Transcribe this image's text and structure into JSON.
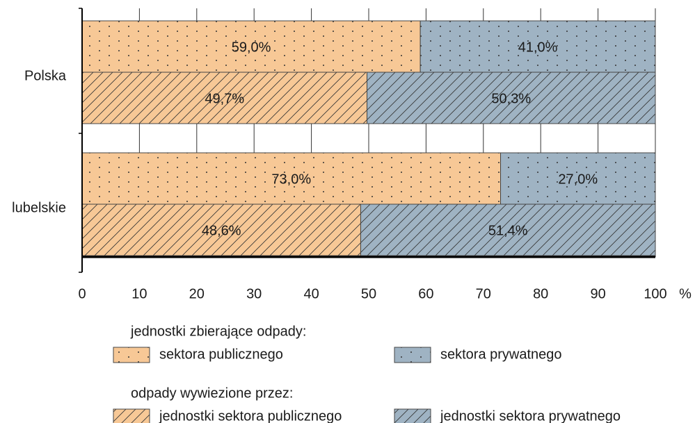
{
  "chart_data": {
    "type": "bar",
    "orientation": "horizontal",
    "categories": [
      "Polska",
      "lubelskie"
    ],
    "series_groups": [
      {
        "title": "jednostki zbierające odpady:",
        "pattern": "dots",
        "series": [
          {
            "name": "sektora publicznego",
            "color": "#f7c896",
            "values": [
              59.0,
              73.0
            ],
            "value_labels": [
              "59,0%",
              "73,0%"
            ]
          },
          {
            "name": "sektora prywatnego",
            "color": "#9fb3c3",
            "values": [
              41.0,
              27.0
            ],
            "value_labels": [
              "41,0%",
              "27,0%"
            ]
          }
        ]
      },
      {
        "title": "odpady wywiezione przez:",
        "pattern": "hatch",
        "series": [
          {
            "name": "jednostki sektora publicznego",
            "color": "#f7c896",
            "values": [
              49.7,
              48.6
            ],
            "value_labels": [
              "49,7%",
              "48,6%"
            ]
          },
          {
            "name": "jednostki sektora prywatnego",
            "color": "#9fb3c3",
            "values": [
              50.3,
              51.4
            ],
            "value_labels": [
              "50,3%",
              "51,4%"
            ]
          }
        ]
      }
    ],
    "xlabel": "%",
    "xlim": [
      0,
      100
    ],
    "xticks": [
      0,
      10,
      20,
      30,
      40,
      50,
      60,
      70,
      80,
      90,
      100
    ],
    "grid": true
  }
}
